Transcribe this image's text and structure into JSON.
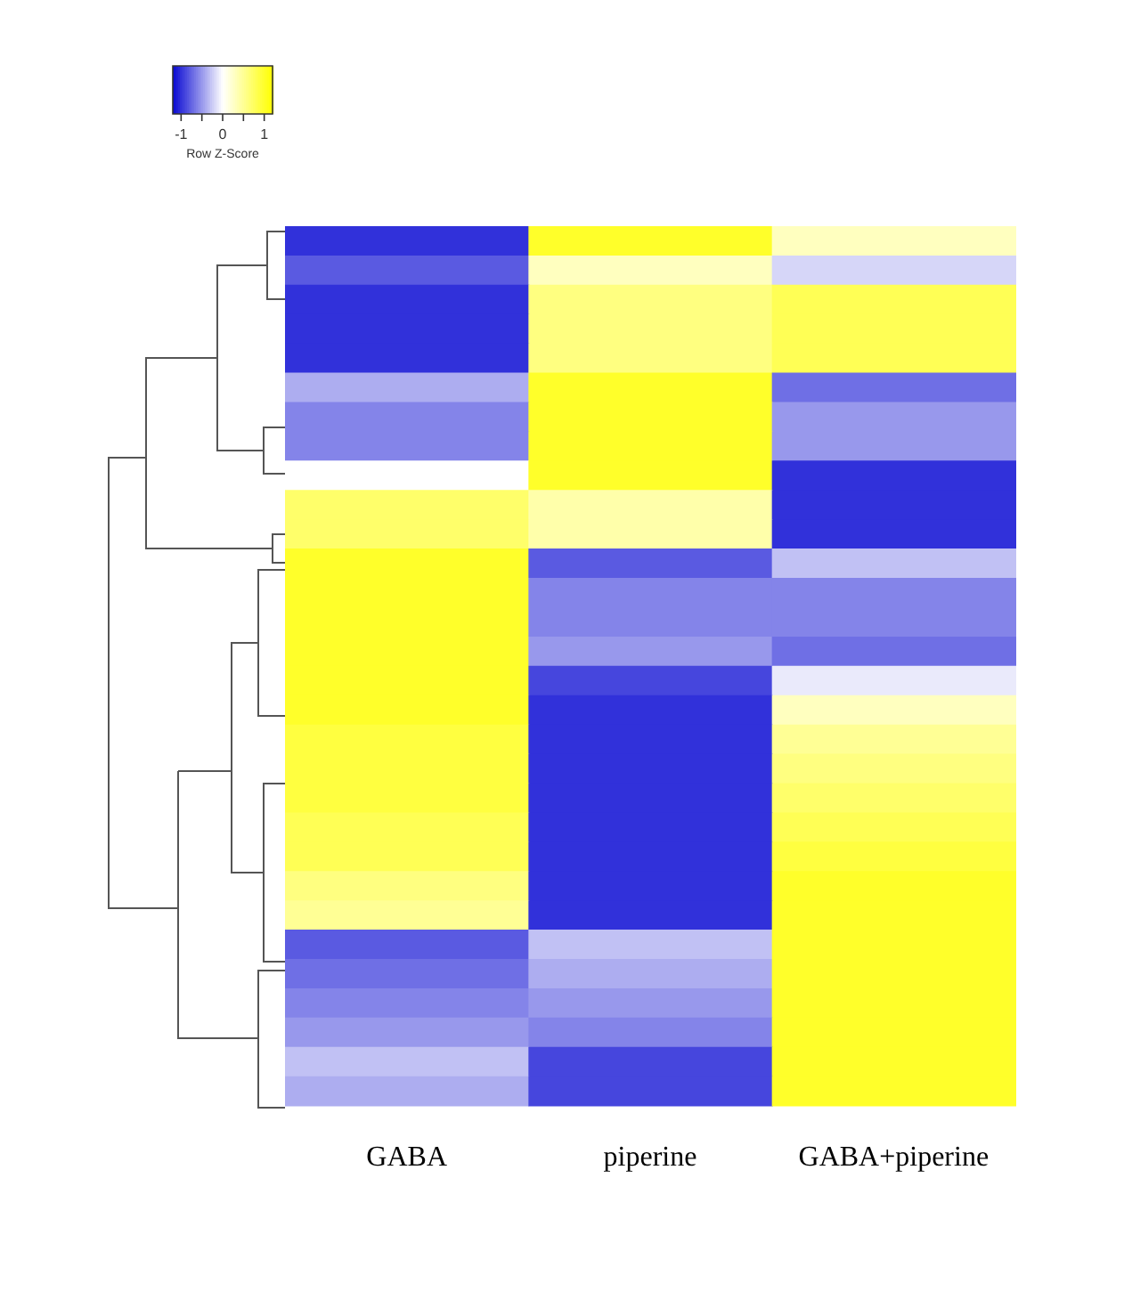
{
  "chart_data": {
    "type": "heatmap",
    "categories": [
      "GABA",
      "piperine",
      "GABA+piperine"
    ],
    "y_categories": [
      null,
      null,
      null,
      null,
      null,
      null,
      null,
      null,
      null,
      null,
      null,
      null,
      null,
      null,
      null,
      null,
      null,
      null,
      null,
      null,
      null,
      null,
      null,
      null,
      null,
      null,
      null,
      null,
      null,
      null
    ],
    "cells": [
      [
        -1,
        1,
        0.3
      ],
      [
        -0.8,
        0.3,
        -0.2
      ],
      [
        -1,
        0.6,
        0.8
      ],
      [
        -1,
        0.6,
        0.8
      ],
      [
        -1,
        0.6,
        0.8
      ],
      [
        -0.4,
        1,
        -0.7
      ],
      [
        -0.6,
        1,
        -0.5
      ],
      [
        -0.6,
        1,
        -0.5
      ],
      [
        0,
        1,
        -1
      ],
      [
        0.7,
        0.4,
        -1
      ],
      [
        0.7,
        0.4,
        -1
      ],
      [
        1,
        -0.8,
        -0.3
      ],
      [
        1,
        -0.6,
        -0.6
      ],
      [
        1,
        -0.6,
        -0.6
      ],
      [
        1,
        -0.5,
        -0.7
      ],
      [
        1,
        -0.9,
        -0.1
      ],
      [
        1,
        -1,
        0.3
      ],
      [
        0.9,
        -1,
        0.5
      ],
      [
        0.9,
        -1,
        0.6
      ],
      [
        0.9,
        -1,
        0.7
      ],
      [
        0.8,
        -1,
        0.8
      ],
      [
        0.8,
        -1,
        0.9
      ],
      [
        0.6,
        -1,
        1
      ],
      [
        0.5,
        -1,
        1
      ],
      [
        -0.8,
        -0.3,
        1
      ],
      [
        -0.7,
        -0.4,
        1
      ],
      [
        -0.6,
        -0.5,
        1
      ],
      [
        -0.5,
        -0.6,
        1
      ],
      [
        -0.3,
        -0.9,
        1
      ],
      [
        -0.4,
        -0.9,
        1
      ]
    ],
    "clim": [
      -1.2,
      1.2
    ],
    "cticks": [
      -1,
      {
        "value": -0.5,
        "label": null
      },
      0,
      {
        "value": 0.5,
        "label": null
      },
      1
    ],
    "clabel": "Row Z-Score"
  }
}
